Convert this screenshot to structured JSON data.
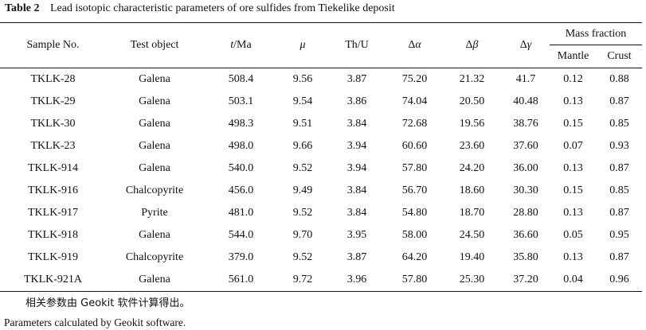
{
  "caption": {
    "number": "Table 2",
    "title": "Lead isotopic characteristic parameters of ore sulfides from Tiekelike deposit"
  },
  "table": {
    "headers": {
      "sample": "Sample No.",
      "test_object": "Test object",
      "t_prefix": "t",
      "t_unit": "/Ma",
      "mu": "μ",
      "th_u": "Th/U",
      "d_alpha_delta": "Δ",
      "d_alpha_sym": "α",
      "d_beta_delta": "Δ",
      "d_beta_sym": "β",
      "d_gamma_delta": "Δ",
      "d_gamma_sym": "γ",
      "mass_fraction": "Mass fraction",
      "mantle": "Mantle",
      "crust": "Crust"
    },
    "rows": [
      {
        "sample": "TKLK-28",
        "object": "Galena",
        "t": "508.4",
        "mu": "9.56",
        "thu": "3.87",
        "da": "75.20",
        "db": "21.32",
        "dg": "41.7",
        "mantle": "0.12",
        "crust": "0.88"
      },
      {
        "sample": "TKLK-29",
        "object": "Galena",
        "t": "503.1",
        "mu": "9.54",
        "thu": "3.86",
        "da": "74.04",
        "db": "20.50",
        "dg": "40.48",
        "mantle": "0.13",
        "crust": "0.87"
      },
      {
        "sample": "TKLK-30",
        "object": "Galena",
        "t": "498.3",
        "mu": "9.51",
        "thu": "3.84",
        "da": "72.68",
        "db": "19.56",
        "dg": "38.76",
        "mantle": "0.15",
        "crust": "0.85"
      },
      {
        "sample": "TKLK-23",
        "object": "Galena",
        "t": "498.0",
        "mu": "9.66",
        "thu": "3.94",
        "da": "60.60",
        "db": "23.60",
        "dg": "37.60",
        "mantle": "0.07",
        "crust": "0.93"
      },
      {
        "sample": "TKLK-914",
        "object": "Galena",
        "t": "540.0",
        "mu": "9.52",
        "thu": "3.94",
        "da": "57.80",
        "db": "24.20",
        "dg": "36.00",
        "mantle": "0.13",
        "crust": "0.87"
      },
      {
        "sample": "TKLK-916",
        "object": "Chalcopyrite",
        "t": "456.0",
        "mu": "9.49",
        "thu": "3.84",
        "da": "56.70",
        "db": "18.60",
        "dg": "30.30",
        "mantle": "0.15",
        "crust": "0.85"
      },
      {
        "sample": "TKLK-917",
        "object": "Pyrite",
        "t": "481.0",
        "mu": "9.52",
        "thu": "3.84",
        "da": "54.80",
        "db": "18.70",
        "dg": "28.80",
        "mantle": "0.13",
        "crust": "0.87"
      },
      {
        "sample": "TKLK-918",
        "object": "Galena",
        "t": "544.0",
        "mu": "9.70",
        "thu": "3.95",
        "da": "58.00",
        "db": "24.50",
        "dg": "36.60",
        "mantle": "0.05",
        "crust": "0.95"
      },
      {
        "sample": "TKLK-919",
        "object": "Chalcopyrite",
        "t": "379.0",
        "mu": "9.52",
        "thu": "3.87",
        "da": "64.20",
        "db": "19.40",
        "dg": "35.80",
        "mantle": "0.13",
        "crust": "0.87"
      },
      {
        "sample": "TKLK-921A",
        "object": "Galena",
        "t": "561.0",
        "mu": "9.72",
        "thu": "3.96",
        "da": "57.80",
        "db": "25.30",
        "dg": "37.20",
        "mantle": "0.04",
        "crust": "0.96"
      }
    ]
  },
  "notes": {
    "zh": "相关参数由 Geokit 软件计算得出。",
    "en": "Parameters calculated by Geokit software."
  }
}
